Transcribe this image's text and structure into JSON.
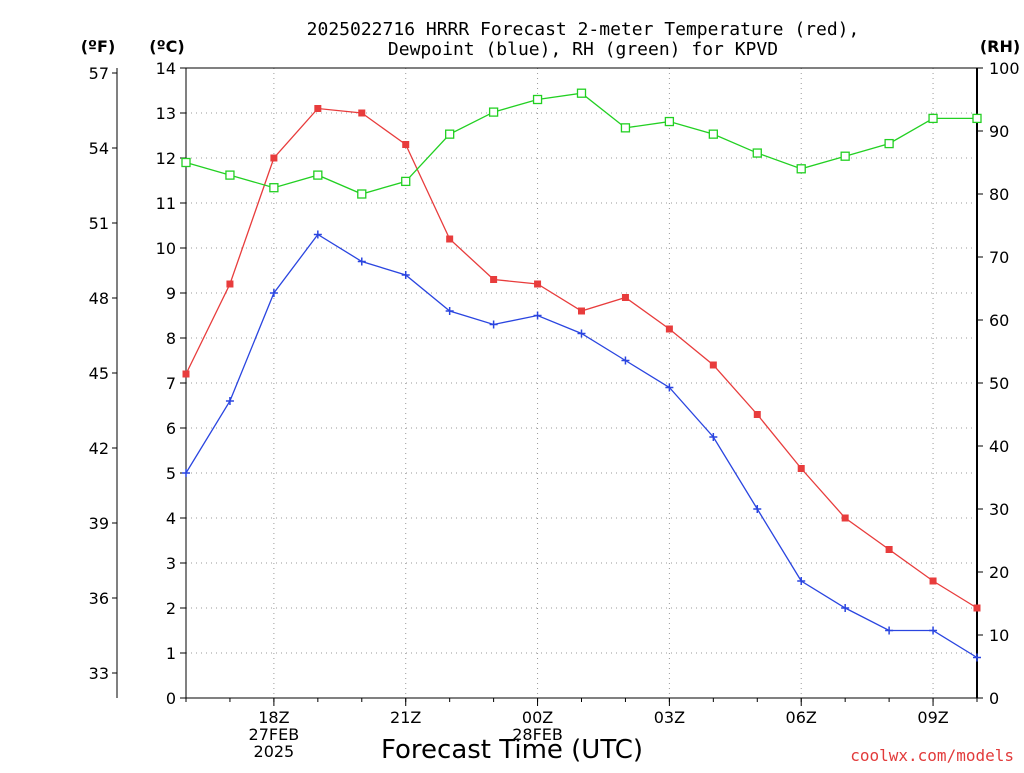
{
  "chart_data": {
    "type": "line",
    "title_line1": "2025022716 HRRR Forecast 2-meter Temperature (red),",
    "title_line2": "Dewpoint (blue), RH (green) for KPVD",
    "xlabel": "Forecast Time (UTC)",
    "credit": "coolwx.com/models",
    "units": {
      "fahrenheit": "(ºF)",
      "celsius": "(ºC)",
      "rh": "(RH)"
    },
    "x_hours": [
      16,
      17,
      18,
      19,
      20,
      21,
      22,
      23,
      24,
      25,
      26,
      27,
      28,
      29,
      30,
      31,
      32,
      33,
      34
    ],
    "x_tick_labels": [
      {
        "hour": 18,
        "lines": [
          "18Z",
          "27FEB",
          "2025"
        ]
      },
      {
        "hour": 21,
        "lines": [
          "21Z"
        ]
      },
      {
        "hour": 24,
        "lines": [
          "00Z",
          "28FEB"
        ]
      },
      {
        "hour": 27,
        "lines": [
          "03Z"
        ]
      },
      {
        "hour": 30,
        "lines": [
          "06Z"
        ]
      },
      {
        "hour": 33,
        "lines": [
          "09Z"
        ]
      }
    ],
    "y_celsius": {
      "range": [
        0,
        14
      ],
      "ticks": [
        0,
        1,
        2,
        3,
        4,
        5,
        6,
        7,
        8,
        9,
        10,
        11,
        12,
        13,
        14
      ]
    },
    "y_fahrenheit": {
      "ticks": [
        33,
        36,
        39,
        42,
        45,
        48,
        51,
        54,
        57
      ]
    },
    "y_rh": {
      "range": [
        0,
        100
      ],
      "ticks": [
        0,
        10,
        20,
        30,
        40,
        50,
        60,
        70,
        80,
        90,
        100
      ]
    },
    "grid": true,
    "series": [
      {
        "name": "Temperature",
        "color": "#e83c3c",
        "marker": "filled-square",
        "axis": "celsius",
        "values": [
          7.2,
          9.2,
          12.0,
          13.1,
          13.0,
          12.3,
          10.2,
          9.3,
          9.2,
          8.6,
          8.9,
          8.2,
          7.4,
          6.3,
          5.1,
          4.0,
          3.3,
          2.6,
          2.0
        ]
      },
      {
        "name": "Dewpoint",
        "color": "#2a45e0",
        "marker": "plus",
        "axis": "celsius",
        "values": [
          5.0,
          6.6,
          9.0,
          10.3,
          9.7,
          9.4,
          8.6,
          8.3,
          8.5,
          8.1,
          7.5,
          6.9,
          5.8,
          4.2,
          2.6,
          2.0,
          1.5,
          1.5,
          0.9
        ]
      },
      {
        "name": "RH",
        "color": "#22d022",
        "marker": "open-square",
        "axis": "rh",
        "values": [
          85,
          83,
          81,
          83,
          80,
          82,
          89.5,
          93,
          95,
          96,
          90.5,
          91.5,
          89.5,
          86.5,
          84,
          86,
          88,
          92,
          92
        ]
      }
    ]
  }
}
